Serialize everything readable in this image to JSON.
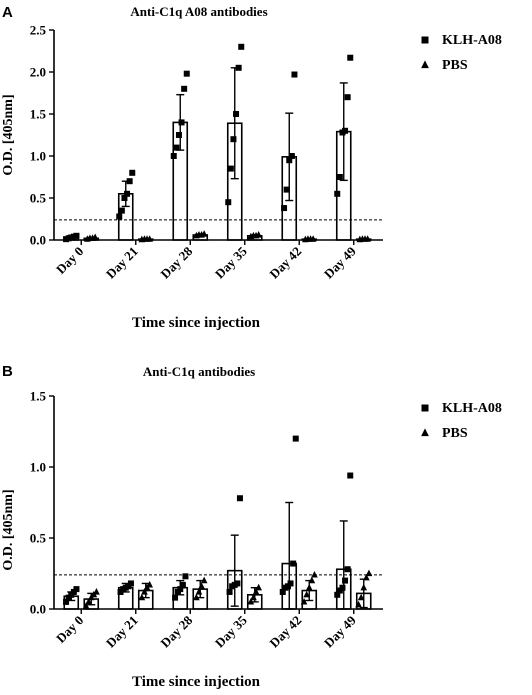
{
  "panel_letters": [
    "A",
    "B"
  ],
  "chart_data": [
    {
      "type": "bar",
      "panel": "A",
      "title": "Anti-C1q A08 antibodies",
      "xlabel": "Time since injection",
      "ylabel": "O.D. [405nm]",
      "categories": [
        "Day 0",
        "Day 21",
        "Day 28",
        "Day 35",
        "Day 42",
        "Day 49"
      ],
      "ylim": [
        0,
        2.5
      ],
      "yticks": [
        0.0,
        0.5,
        1.0,
        1.5,
        2.0,
        2.5
      ],
      "ytick_labels": [
        "0.0",
        "0.5",
        "1.0",
        "1.5",
        "2.0",
        "2.5"
      ],
      "threshold": 0.24,
      "legend_position": "right",
      "bar_style": "open bars with mean and SD error bars and individual points",
      "series": [
        {
          "name": "KLH-A08",
          "marker": "square",
          "mean": [
            0.03,
            0.55,
            1.4,
            1.39,
            0.99,
            1.29
          ],
          "sd": [
            0.02,
            0.15,
            0.33,
            0.66,
            0.52,
            0.58
          ],
          "points": [
            [
              0.01,
              0.02,
              0.03,
              0.04,
              0.05
            ],
            [
              0.28,
              0.35,
              0.5,
              0.55,
              0.7,
              0.8
            ],
            [
              1.0,
              1.1,
              1.25,
              1.4,
              1.8,
              1.98
            ],
            [
              0.45,
              0.85,
              1.2,
              1.5,
              2.05,
              2.3
            ],
            [
              0.38,
              0.6,
              0.95,
              1.0,
              1.97
            ],
            [
              0.55,
              0.75,
              1.28,
              1.3,
              1.7,
              2.17
            ]
          ]
        },
        {
          "name": "PBS",
          "marker": "triangle",
          "mean": [
            0.02,
            0.01,
            0.06,
            0.05,
            0.01,
            0.01
          ],
          "sd": [
            0.01,
            0.005,
            0.01,
            0.01,
            0.005,
            0.005
          ],
          "points": [
            [
              0.01,
              0.02,
              0.02,
              0.03
            ],
            [
              0.005,
              0.01,
              0.01,
              0.01
            ],
            [
              0.05,
              0.06,
              0.06,
              0.07
            ],
            [
              0.04,
              0.05,
              0.05,
              0.06
            ],
            [
              0.005,
              0.01,
              0.01,
              0.01
            ],
            [
              0.005,
              0.01,
              0.01,
              0.01
            ]
          ]
        }
      ]
    },
    {
      "type": "bar",
      "panel": "B",
      "title": "Anti-C1q antibodies",
      "xlabel": "Time since injection",
      "ylabel": "O.D. [405nm]",
      "categories": [
        "Day 0",
        "Day 21",
        "Day 28",
        "Day 35",
        "Day 42",
        "Day 49"
      ],
      "ylim": [
        0,
        1.5
      ],
      "yticks": [
        0.0,
        0.5,
        1.0,
        1.5
      ],
      "ytick_labels": [
        "0.0",
        "0.5",
        "1.0",
        "1.5"
      ],
      "threshold": 0.24,
      "legend_position": "right",
      "bar_style": "open bars with mean and SD error bars and individual points",
      "series": [
        {
          "name": "KLH-A08",
          "marker": "square",
          "mean": [
            0.09,
            0.15,
            0.15,
            0.27,
            0.32,
            0.28
          ],
          "sd": [
            0.03,
            0.03,
            0.05,
            0.25,
            0.43,
            0.34
          ],
          "points": [
            [
              0.05,
              0.08,
              0.1,
              0.12,
              0.14
            ],
            [
              0.12,
              0.14,
              0.15,
              0.16,
              0.18
            ],
            [
              0.08,
              0.12,
              0.14,
              0.17,
              0.23
            ],
            [
              0.12,
              0.16,
              0.17,
              0.18,
              0.78
            ],
            [
              0.12,
              0.15,
              0.16,
              0.18,
              0.32,
              1.2
            ],
            [
              0.1,
              0.13,
              0.15,
              0.2,
              0.28,
              0.94
            ]
          ]
        },
        {
          "name": "PBS",
          "marker": "triangle",
          "mean": [
            0.07,
            0.13,
            0.14,
            0.1,
            0.13,
            0.11
          ],
          "sd": [
            0.04,
            0.05,
            0.06,
            0.05,
            0.07,
            0.1
          ],
          "points": [
            [
              0.02,
              0.05,
              0.08,
              0.1,
              0.12
            ],
            [
              0.08,
              0.12,
              0.15,
              0.17
            ],
            [
              0.08,
              0.12,
              0.16,
              0.2
            ],
            [
              0.05,
              0.08,
              0.12,
              0.15
            ],
            [
              0.05,
              0.1,
              0.15,
              0.2,
              0.24
            ],
            [
              0.03,
              0.08,
              0.15,
              0.22,
              0.25
            ]
          ]
        }
      ]
    }
  ]
}
